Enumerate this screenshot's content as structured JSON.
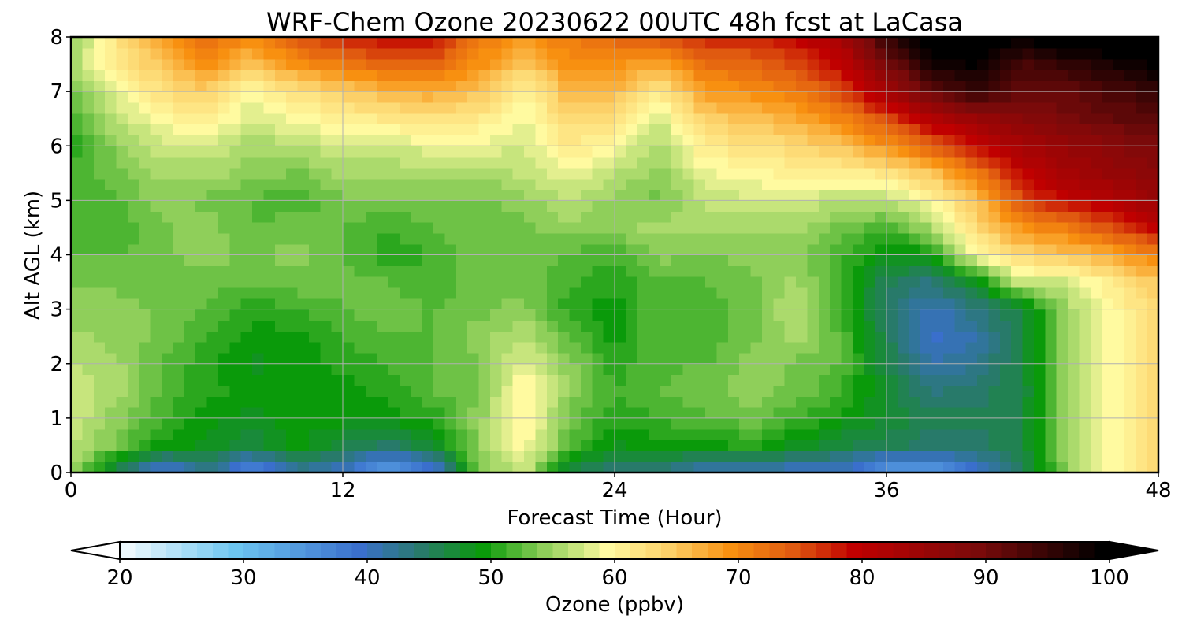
{
  "chart_data": {
    "type": "heatmap",
    "title": "WRF-Chem Ozone  20230622 00UTC 48h fcst at LaCasa",
    "xlabel": "Forecast Time (Hour)",
    "ylabel": "Alt AGL (km)",
    "xlim": [
      0,
      48
    ],
    "ylim": [
      0,
      8
    ],
    "x_ticks": [
      0,
      12,
      24,
      36,
      48
    ],
    "y_ticks": [
      0,
      1,
      2,
      3,
      4,
      5,
      6,
      7,
      8
    ],
    "grid": true,
    "colorbar": {
      "label": "Ozone  (ppbv)",
      "min": 20,
      "max": 100,
      "ticks": [
        20,
        30,
        40,
        50,
        60,
        70,
        80,
        90,
        100
      ],
      "extend": "both",
      "palette": [
        {
          "value": 20,
          "color": "#ffffff"
        },
        {
          "value": 30,
          "color": "#6cc5f0"
        },
        {
          "value": 40,
          "color": "#3a6fcc"
        },
        {
          "value": 45,
          "color": "#287a6a"
        },
        {
          "value": 50,
          "color": "#0a9a0a"
        },
        {
          "value": 55,
          "color": "#8fcf5a"
        },
        {
          "value": 60,
          "color": "#fffaa0"
        },
        {
          "value": 65,
          "color": "#fcd068"
        },
        {
          "value": 70,
          "color": "#f89010"
        },
        {
          "value": 75,
          "color": "#e05a10"
        },
        {
          "value": 80,
          "color": "#c00000"
        },
        {
          "value": 90,
          "color": "#7a0a0a"
        },
        {
          "value": 100,
          "color": "#000000"
        }
      ]
    },
    "x": [
      0,
      2,
      4,
      6,
      8,
      10,
      12,
      14,
      16,
      18,
      20,
      22,
      24,
      26,
      28,
      30,
      32,
      34,
      36,
      38,
      40,
      42,
      44,
      46,
      48
    ],
    "y": [
      0,
      0.5,
      1,
      1.5,
      2,
      2.5,
      3,
      3.5,
      4,
      4.5,
      5,
      5.5,
      6,
      6.5,
      7,
      7.5,
      8
    ],
    "z": [
      [
        56,
        46,
        38,
        43,
        36,
        42,
        40,
        33,
        38,
        54,
        58,
        46,
        44,
        44,
        40,
        40,
        40,
        40,
        34,
        34,
        40,
        46,
        55,
        60,
        64
      ],
      [
        57,
        54,
        50,
        49,
        47,
        50,
        47,
        45,
        48,
        55,
        60,
        53,
        49,
        50,
        50,
        51,
        49,
        47,
        46,
        45,
        45,
        47,
        56,
        60,
        64
      ],
      [
        58,
        55,
        52,
        50,
        49,
        50,
        50,
        50,
        51,
        55,
        61,
        54,
        51,
        52,
        53,
        54,
        52,
        50,
        48,
        46,
        46,
        47,
        56,
        60,
        64
      ],
      [
        58,
        56,
        53,
        51,
        50,
        50,
        50,
        51,
        53,
        54,
        61,
        55,
        52,
        53,
        54,
        55,
        54,
        52,
        48,
        44,
        45,
        47,
        56,
        60,
        64
      ],
      [
        57,
        56,
        53,
        51,
        49,
        50,
        51,
        52,
        53,
        54,
        59,
        55,
        51,
        53,
        53,
        55,
        54,
        53,
        47,
        42,
        43,
        47,
        56,
        60,
        64
      ],
      [
        56,
        55,
        54,
        52,
        50,
        50,
        52,
        53,
        53,
        55,
        57,
        53,
        50,
        53,
        52,
        54,
        56,
        53,
        46,
        40,
        42,
        47,
        56,
        60,
        64
      ],
      [
        55,
        55,
        54,
        53,
        51,
        52,
        53,
        54,
        53,
        54,
        55,
        51,
        50,
        53,
        52,
        54,
        57,
        52,
        45,
        41,
        44,
        47,
        56,
        60,
        64
      ],
      [
        54,
        54,
        54,
        54,
        53,
        54,
        54,
        53,
        52,
        54,
        54,
        52,
        51,
        53,
        53,
        54,
        56,
        52,
        46,
        44,
        49,
        58,
        58,
        62,
        66
      ],
      [
        53,
        53,
        54,
        55,
        54,
        55,
        53,
        51,
        52,
        54,
        54,
        53,
        52,
        55,
        54,
        55,
        55,
        52,
        49,
        50,
        60,
        64,
        66,
        68,
        72
      ],
      [
        52,
        52,
        54,
        55,
        53,
        54,
        53,
        52,
        53,
        54,
        54,
        55,
        55,
        56,
        56,
        56,
        56,
        54,
        52,
        56,
        64,
        70,
        72,
        76,
        80
      ],
      [
        52,
        53,
        55,
        54,
        53,
        52,
        54,
        54,
        54,
        54,
        55,
        57,
        55,
        54,
        57,
        58,
        58,
        57,
        57,
        60,
        66,
        76,
        80,
        82,
        86
      ],
      [
        52,
        54,
        56,
        56,
        55,
        54,
        56,
        56,
        56,
        56,
        57,
        59,
        57,
        55,
        59,
        60,
        61,
        61,
        62,
        66,
        72,
        80,
        84,
        86,
        88
      ],
      [
        51,
        55,
        58,
        58,
        56,
        57,
        58,
        58,
        59,
        59,
        58,
        62,
        60,
        56,
        62,
        63,
        64,
        66,
        70,
        74,
        80,
        84,
        86,
        88,
        90
      ],
      [
        52,
        57,
        60,
        62,
        58,
        60,
        61,
        62,
        63,
        62,
        59,
        64,
        63,
        58,
        65,
        66,
        68,
        71,
        76,
        82,
        86,
        88,
        90,
        92,
        92
      ],
      [
        54,
        59,
        63,
        65,
        60,
        63,
        65,
        67,
        68,
        66,
        61,
        67,
        67,
        62,
        69,
        70,
        72,
        76,
        84,
        92,
        96,
        92,
        92,
        94,
        96
      ],
      [
        56,
        62,
        66,
        70,
        66,
        70,
        72,
        74,
        74,
        70,
        65,
        70,
        70,
        68,
        73,
        74,
        76,
        80,
        90,
        98,
        100,
        94,
        96,
        98,
        100
      ],
      [
        55,
        63,
        69,
        74,
        70,
        76,
        78,
        80,
        80,
        72,
        70,
        72,
        74,
        76,
        78,
        78,
        80,
        84,
        96,
        102,
        102,
        100,
        102,
        102,
        102
      ]
    ]
  }
}
